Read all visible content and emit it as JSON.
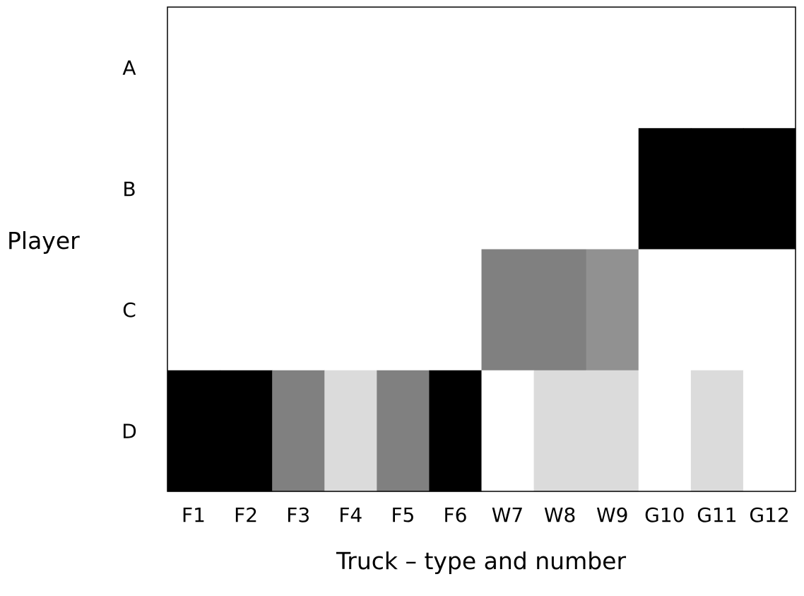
{
  "chart_data": {
    "type": "heatmap",
    "ylabel": "Player",
    "xlabel": "Truck – type and number",
    "rows": [
      "A",
      "B",
      "C",
      "D"
    ],
    "columns": [
      "F1",
      "F2",
      "F3",
      "F4",
      "F5",
      "F6",
      "W7",
      "W8",
      "W9",
      "G10",
      "G11",
      "G12"
    ],
    "values": [
      [
        0,
        0,
        0,
        0,
        0,
        0,
        0,
        0,
        0,
        0,
        0,
        0
      ],
      [
        0,
        0,
        0,
        0,
        0,
        0,
        0,
        0,
        0,
        1.0,
        1.0,
        1.0
      ],
      [
        0,
        0,
        0,
        0,
        0,
        0,
        0.5,
        0.5,
        0.43,
        0,
        0,
        0
      ],
      [
        1.0,
        1.0,
        0.5,
        0.14,
        0.5,
        1.0,
        0,
        0.14,
        0.14,
        0,
        0.14,
        0
      ]
    ],
    "grid": false,
    "colors": {
      "background": "#ffffff",
      "axis": "#000000"
    }
  }
}
